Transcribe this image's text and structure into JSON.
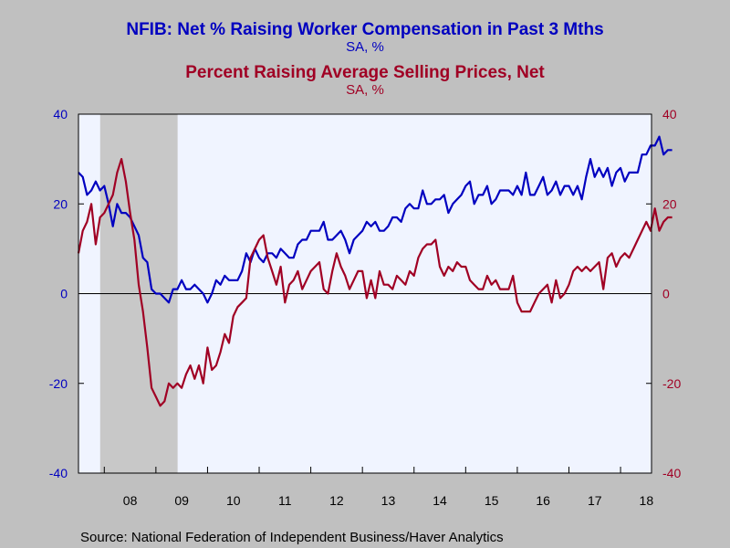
{
  "chart_data": {
    "type": "line",
    "titles": [
      {
        "text": "NFIB: Net % Raising Worker Compensation in Past 3 Mths",
        "color": "#0000c0"
      },
      {
        "text": "SA, %",
        "color": "#0000c0"
      },
      {
        "text": "Percent Raising Average Selling Prices, Net",
        "color": "#a00024"
      },
      {
        "text": "SA, %",
        "color": "#a00024"
      }
    ],
    "source": "Source:  National Federation of Independent Business/Haver Analytics",
    "x_range": [
      2007.5,
      2018.6
    ],
    "x_ticks": [
      {
        "label": "08",
        "pos": 2008.5
      },
      {
        "label": "09",
        "pos": 2009.5
      },
      {
        "label": "10",
        "pos": 2010.5
      },
      {
        "label": "11",
        "pos": 2011.5
      },
      {
        "label": "12",
        "pos": 2012.5
      },
      {
        "label": "13",
        "pos": 2013.5
      },
      {
        "label": "14",
        "pos": 2014.5
      },
      {
        "label": "15",
        "pos": 2015.5
      },
      {
        "label": "16",
        "pos": 2016.5
      },
      {
        "label": "17",
        "pos": 2017.5
      },
      {
        "label": "18",
        "pos": 2018.5
      }
    ],
    "y_left": {
      "range": [
        -40,
        40
      ],
      "ticks": [
        "40",
        "20",
        "0",
        "-20",
        "-40"
      ],
      "color": "#0000c0"
    },
    "y_right": {
      "range": [
        -40,
        40
      ],
      "ticks": [
        "40",
        "20",
        "0",
        "-20",
        "-40"
      ],
      "color": "#a00024"
    },
    "recession": {
      "start": 2007.92,
      "end": 2009.42,
      "color": "#c8c8c8"
    },
    "plot_bg": "#f0f4ff",
    "zero_line": true,
    "series": [
      {
        "color": "#0000c0",
        "axis": "left",
        "start": 2007.5,
        "step": 0.08333,
        "values": [
          27,
          26,
          22,
          23,
          25,
          23,
          24,
          20,
          15,
          20,
          18,
          18,
          17,
          15,
          13,
          8,
          7,
          1,
          0,
          0,
          -1,
          -2,
          1,
          1,
          3,
          1,
          1,
          2,
          1,
          0,
          -2,
          0,
          3,
          2,
          4,
          3,
          3,
          3,
          5,
          9,
          7,
          10,
          8,
          7,
          9,
          9,
          8,
          10,
          9,
          8,
          8,
          11,
          12,
          12,
          14,
          14,
          14,
          16,
          12,
          12,
          13,
          14,
          12,
          9,
          12,
          13,
          14,
          16,
          15,
          16,
          14,
          14,
          15,
          17,
          17,
          16,
          19,
          20,
          19,
          19,
          23,
          20,
          20,
          21,
          21,
          22,
          18,
          20,
          21,
          22,
          24,
          25,
          20,
          22,
          22,
          24,
          20,
          21,
          23,
          23,
          23,
          22,
          24,
          22,
          27,
          22,
          22,
          24,
          26,
          22,
          23,
          25,
          22,
          24,
          24,
          22,
          24,
          21,
          26,
          30,
          26,
          28,
          26,
          28,
          24,
          27,
          28,
          25,
          27,
          27,
          27,
          31,
          31,
          33,
          33,
          35,
          31,
          32,
          32
        ]
      },
      {
        "color": "#a00024",
        "axis": "right",
        "start": 2007.5,
        "step": 0.08333,
        "values": [
          9,
          14,
          16,
          20,
          11,
          17,
          18,
          20,
          22,
          27,
          30,
          25,
          18,
          12,
          2,
          -4,
          -12,
          -21,
          -23,
          -25,
          -24,
          -20,
          -21,
          -20,
          -21,
          -18,
          -16,
          -19,
          -16,
          -20,
          -12,
          -17,
          -16,
          -13,
          -9,
          -11,
          -5,
          -3,
          -2,
          -1,
          8,
          10,
          12,
          13,
          8,
          5,
          2,
          6,
          -2,
          2,
          3,
          5,
          1,
          3,
          5,
          6,
          7,
          1,
          0,
          5,
          9,
          6,
          4,
          1,
          3,
          5,
          5,
          -1,
          3,
          -1,
          5,
          2,
          2,
          1,
          4,
          3,
          2,
          5,
          4,
          8,
          10,
          11,
          11,
          12,
          6,
          4,
          6,
          5,
          7,
          6,
          6,
          3,
          2,
          1,
          1,
          4,
          2,
          3,
          1,
          1,
          1,
          4,
          -2,
          -4,
          -4,
          -4,
          -2,
          0,
          1,
          2,
          -2,
          3,
          -1,
          0,
          2,
          5,
          6,
          5,
          6,
          5,
          6,
          7,
          1,
          8,
          9,
          6,
          8,
          9,
          8,
          10,
          12,
          14,
          16,
          14,
          19,
          14,
          16,
          17,
          17
        ]
      }
    ]
  }
}
